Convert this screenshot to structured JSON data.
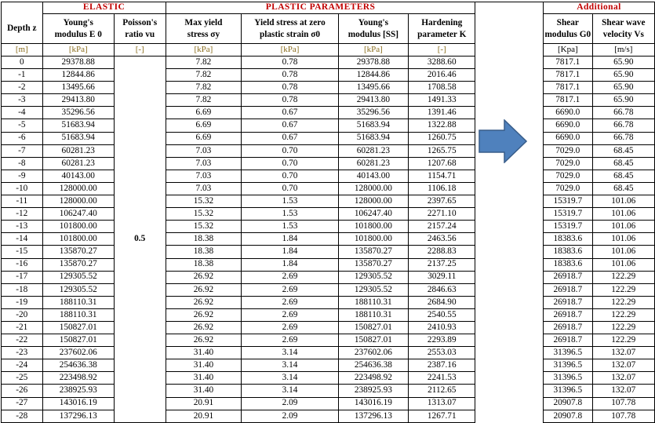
{
  "sections": {
    "elastic": "ELASTIC",
    "plastic": "PLASTIC PARAMETERS",
    "additional": "Additional"
  },
  "columns": {
    "depth": "Depth z",
    "youngs_e0_line1": "Young's",
    "youngs_e0_line2": "modulus E 0",
    "poisson_line1": "Poisson's",
    "poisson_line2": "ratio vu",
    "max_yield_line1": "Max yield",
    "max_yield_line2": "stress σy",
    "yield_zero_line1": "Yield stress at zero",
    "yield_zero_line2": "plastic strain σ0",
    "youngs_ss_line1": "Young's",
    "youngs_ss_line2": "modulus [SS]",
    "hardening_line1": "Hardening",
    "hardening_line2": "parameter K",
    "shear_mod_line1": "Shear",
    "shear_mod_line2": "modulus G0",
    "shear_vel_line1": "Shear wave",
    "shear_vel_line2": "velocity Vs"
  },
  "units": {
    "depth": "[m]",
    "youngs_e0": "[kPa]",
    "poisson": "[-]",
    "max_yield": "[kPa]",
    "yield_zero": "[kPa]",
    "youngs_ss": "[kPa]",
    "hardening": "[-]",
    "shear_mod": "[Kpa]",
    "shear_vel": "[m/s]"
  },
  "poisson_value": "0.5",
  "rows": [
    {
      "z": "0",
      "e0": "29378.88",
      "sy": "7.82",
      "s0": "0.78",
      "ess": "29378.88",
      "k": "3288.60",
      "g0": "7817.1",
      "vs": "65.90"
    },
    {
      "z": "-1",
      "e0": "12844.86",
      "sy": "7.82",
      "s0": "0.78",
      "ess": "12844.86",
      "k": "2016.46",
      "g0": "7817.1",
      "vs": "65.90"
    },
    {
      "z": "-2",
      "e0": "13495.66",
      "sy": "7.82",
      "s0": "0.78",
      "ess": "13495.66",
      "k": "1708.58",
      "g0": "7817.1",
      "vs": "65.90"
    },
    {
      "z": "-3",
      "e0": "29413.80",
      "sy": "7.82",
      "s0": "0.78",
      "ess": "29413.80",
      "k": "1491.33",
      "g0": "7817.1",
      "vs": "65.90"
    },
    {
      "z": "-4",
      "e0": "35296.56",
      "sy": "6.69",
      "s0": "0.67",
      "ess": "35296.56",
      "k": "1391.46",
      "g0": "6690.0",
      "vs": "66.78"
    },
    {
      "z": "-5",
      "e0": "51683.94",
      "sy": "6.69",
      "s0": "0.67",
      "ess": "51683.94",
      "k": "1322.88",
      "g0": "6690.0",
      "vs": "66.78"
    },
    {
      "z": "-6",
      "e0": "51683.94",
      "sy": "6.69",
      "s0": "0.67",
      "ess": "51683.94",
      "k": "1260.75",
      "g0": "6690.0",
      "vs": "66.78"
    },
    {
      "z": "-7",
      "e0": "60281.23",
      "sy": "7.03",
      "s0": "0.70",
      "ess": "60281.23",
      "k": "1265.75",
      "g0": "7029.0",
      "vs": "68.45"
    },
    {
      "z": "-8",
      "e0": "60281.23",
      "sy": "7.03",
      "s0": "0.70",
      "ess": "60281.23",
      "k": "1207.68",
      "g0": "7029.0",
      "vs": "68.45"
    },
    {
      "z": "-9",
      "e0": "40143.00",
      "sy": "7.03",
      "s0": "0.70",
      "ess": "40143.00",
      "k": "1154.71",
      "g0": "7029.0",
      "vs": "68.45"
    },
    {
      "z": "-10",
      "e0": "128000.00",
      "sy": "7.03",
      "s0": "0.70",
      "ess": "128000.00",
      "k": "1106.18",
      "g0": "7029.0",
      "vs": "68.45"
    },
    {
      "z": "-11",
      "e0": "128000.00",
      "sy": "15.32",
      "s0": "1.53",
      "ess": "128000.00",
      "k": "2397.65",
      "g0": "15319.7",
      "vs": "101.06"
    },
    {
      "z": "-12",
      "e0": "106247.40",
      "sy": "15.32",
      "s0": "1.53",
      "ess": "106247.40",
      "k": "2271.10",
      "g0": "15319.7",
      "vs": "101.06"
    },
    {
      "z": "-13",
      "e0": "101800.00",
      "sy": "15.32",
      "s0": "1.53",
      "ess": "101800.00",
      "k": "2157.24",
      "g0": "15319.7",
      "vs": "101.06"
    },
    {
      "z": "-14",
      "e0": "101800.00",
      "sy": "18.38",
      "s0": "1.84",
      "ess": "101800.00",
      "k": "2463.56",
      "g0": "18383.6",
      "vs": "101.06"
    },
    {
      "z": "-15",
      "e0": "135870.27",
      "sy": "18.38",
      "s0": "1.84",
      "ess": "135870.27",
      "k": "2288.83",
      "g0": "18383.6",
      "vs": "101.06"
    },
    {
      "z": "-16",
      "e0": "135870.27",
      "sy": "18.38",
      "s0": "1.84",
      "ess": "135870.27",
      "k": "2137.25",
      "g0": "18383.6",
      "vs": "101.06"
    },
    {
      "z": "-17",
      "e0": "129305.52",
      "sy": "26.92",
      "s0": "2.69",
      "ess": "129305.52",
      "k": "3029.11",
      "g0": "26918.7",
      "vs": "122.29"
    },
    {
      "z": "-18",
      "e0": "129305.52",
      "sy": "26.92",
      "s0": "2.69",
      "ess": "129305.52",
      "k": "2846.63",
      "g0": "26918.7",
      "vs": "122.29"
    },
    {
      "z": "-19",
      "e0": "188110.31",
      "sy": "26.92",
      "s0": "2.69",
      "ess": "188110.31",
      "k": "2684.90",
      "g0": "26918.7",
      "vs": "122.29"
    },
    {
      "z": "-20",
      "e0": "188110.31",
      "sy": "26.92",
      "s0": "2.69",
      "ess": "188110.31",
      "k": "2540.55",
      "g0": "26918.7",
      "vs": "122.29"
    },
    {
      "z": "-21",
      "e0": "150827.01",
      "sy": "26.92",
      "s0": "2.69",
      "ess": "150827.01",
      "k": "2410.93",
      "g0": "26918.7",
      "vs": "122.29"
    },
    {
      "z": "-22",
      "e0": "150827.01",
      "sy": "26.92",
      "s0": "2.69",
      "ess": "150827.01",
      "k": "2293.89",
      "g0": "26918.7",
      "vs": "122.29"
    },
    {
      "z": "-23",
      "e0": "237602.06",
      "sy": "31.40",
      "s0": "3.14",
      "ess": "237602.06",
      "k": "2553.03",
      "g0": "31396.5",
      "vs": "132.07"
    },
    {
      "z": "-24",
      "e0": "254636.38",
      "sy": "31.40",
      "s0": "3.14",
      "ess": "254636.38",
      "k": "2387.16",
      "g0": "31396.5",
      "vs": "132.07"
    },
    {
      "z": "-25",
      "e0": "223498.92",
      "sy": "31.40",
      "s0": "3.14",
      "ess": "223498.92",
      "k": "2241.53",
      "g0": "31396.5",
      "vs": "132.07"
    },
    {
      "z": "-26",
      "e0": "238925.93",
      "sy": "31.40",
      "s0": "3.14",
      "ess": "238925.93",
      "k": "2112.65",
      "g0": "31396.5",
      "vs": "132.07"
    },
    {
      "z": "-27",
      "e0": "143016.19",
      "sy": "20.91",
      "s0": "2.09",
      "ess": "143016.19",
      "k": "1313.07",
      "g0": "20907.8",
      "vs": "107.78"
    },
    {
      "z": "-28",
      "e0": "137296.13",
      "sy": "20.91",
      "s0": "2.09",
      "ess": "137296.13",
      "k": "1267.71",
      "g0": "20907.8",
      "vs": "107.78"
    }
  ],
  "arrow": {
    "icon": "right-arrow-icon",
    "fill": "#4f81bd",
    "stroke": "#385d8a"
  }
}
